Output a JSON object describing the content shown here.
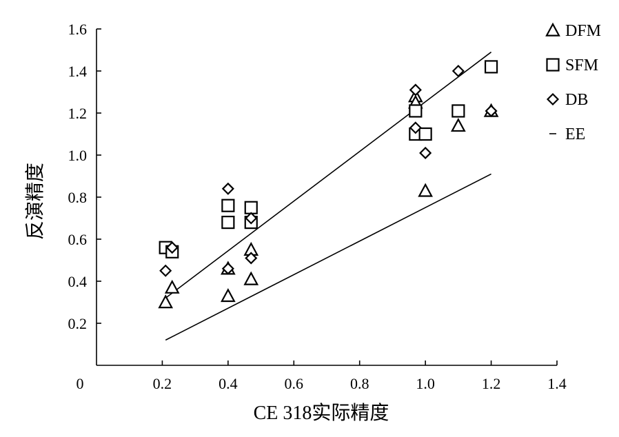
{
  "chart_data": {
    "type": "scatter",
    "xlabel": "CE 318实际精度",
    "ylabel": "反演精度",
    "xlim": [
      0,
      1.4
    ],
    "ylim": [
      0,
      1.6
    ],
    "xticks": [
      0.2,
      0.4,
      0.6,
      0.8,
      1.0,
      1.2,
      1.4
    ],
    "xtick_labels": [
      "0.2",
      "0.4",
      "0.6",
      "0.8",
      "1.0",
      "1.2",
      "1.4"
    ],
    "yticks": [
      0.2,
      0.4,
      0.6,
      0.8,
      1.0,
      1.2,
      1.4,
      1.6
    ],
    "ytick_labels": [
      "0.2",
      "0.4",
      "0.6",
      "0.8",
      "1.0",
      "1.2",
      "1.4",
      "1.6"
    ],
    "origin_label": "0",
    "legend_position": "top-right",
    "grid": false,
    "series": [
      {
        "name": "DFM",
        "marker": "triangle",
        "points": [
          [
            0.21,
            0.3
          ],
          [
            0.23,
            0.37
          ],
          [
            0.4,
            0.33
          ],
          [
            0.4,
            0.46
          ],
          [
            0.47,
            0.41
          ],
          [
            0.47,
            0.55
          ],
          [
            0.97,
            1.28
          ],
          [
            0.97,
            1.25
          ],
          [
            1.0,
            0.83
          ],
          [
            1.1,
            1.14
          ],
          [
            1.2,
            1.21
          ]
        ]
      },
      {
        "name": "SFM",
        "marker": "square",
        "points": [
          [
            0.21,
            0.56
          ],
          [
            0.23,
            0.54
          ],
          [
            0.4,
            0.76
          ],
          [
            0.4,
            0.68
          ],
          [
            0.47,
            0.75
          ],
          [
            0.47,
            0.68
          ],
          [
            0.97,
            1.21
          ],
          [
            0.97,
            1.1
          ],
          [
            1.0,
            1.1
          ],
          [
            1.1,
            1.21
          ],
          [
            1.2,
            1.42
          ]
        ]
      },
      {
        "name": "DB",
        "marker": "diamond",
        "points": [
          [
            0.21,
            0.45
          ],
          [
            0.23,
            0.56
          ],
          [
            0.4,
            0.84
          ],
          [
            0.4,
            0.46
          ],
          [
            0.47,
            0.7
          ],
          [
            0.47,
            0.51
          ],
          [
            0.97,
            1.31
          ],
          [
            0.97,
            1.13
          ],
          [
            1.0,
            1.01
          ],
          [
            1.1,
            1.4
          ],
          [
            1.2,
            1.21
          ]
        ]
      },
      {
        "name": "EE",
        "marker": "line",
        "lines": [
          {
            "x": [
              0.21,
              1.2
            ],
            "y": [
              0.32,
              1.49
            ]
          },
          {
            "x": [
              0.21,
              1.2
            ],
            "y": [
              0.12,
              0.91
            ]
          }
        ]
      }
    ]
  }
}
